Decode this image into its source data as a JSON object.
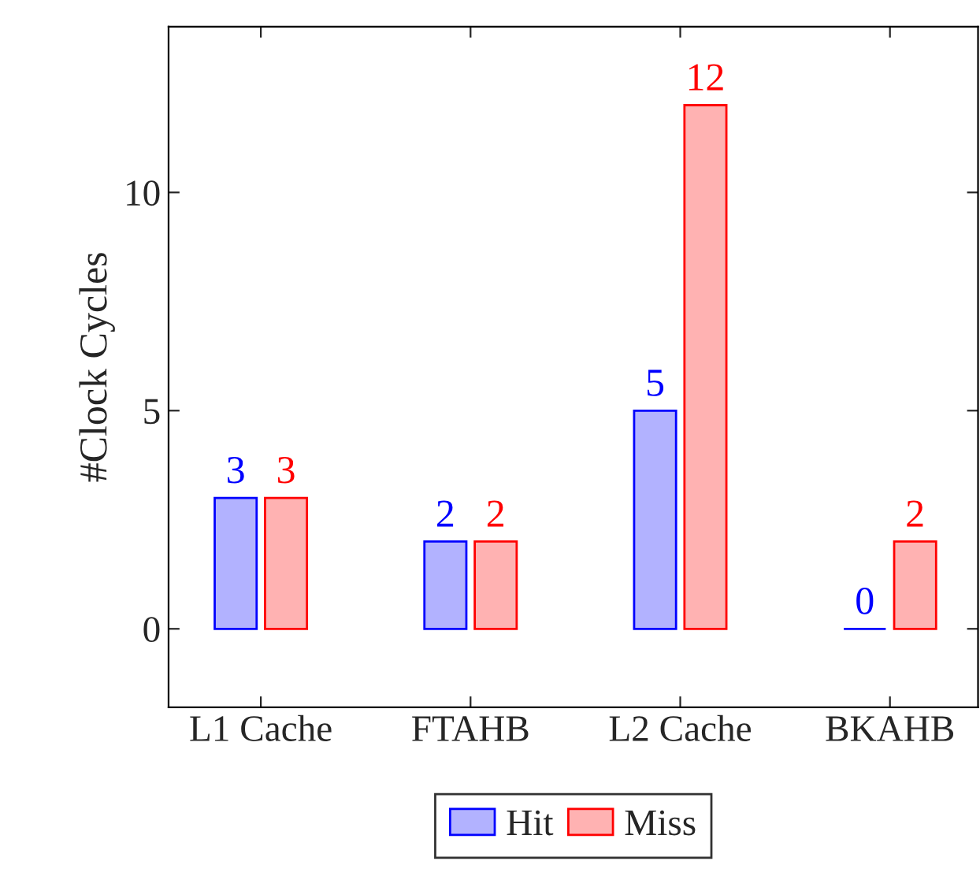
{
  "chart_data": {
    "type": "bar",
    "ylabel": "#Clock Cycles",
    "categories": [
      "L1 Cache",
      "FTAHB",
      "L2 Cache",
      "BKAHB"
    ],
    "series": [
      {
        "name": "Hit",
        "color": "#0000ff",
        "values": [
          3,
          2,
          5,
          0
        ]
      },
      {
        "name": "Miss",
        "color": "#ff0000",
        "values": [
          3,
          2,
          12,
          2
        ]
      }
    ],
    "ylim": [
      -1.8,
      13.8
    ],
    "yticks": [
      0,
      5,
      10
    ],
    "data_labels": true,
    "legend": "bottom",
    "grid": false
  }
}
